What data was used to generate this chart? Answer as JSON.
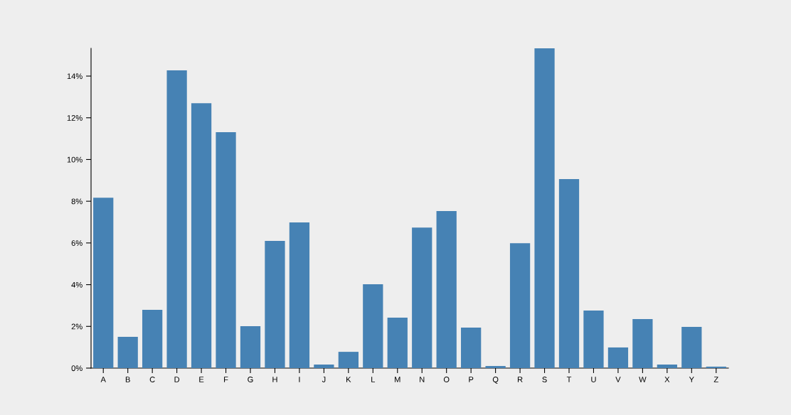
{
  "chart_data": {
    "type": "bar",
    "categories": [
      "A",
      "B",
      "C",
      "D",
      "E",
      "F",
      "G",
      "H",
      "I",
      "J",
      "K",
      "L",
      "M",
      "N",
      "O",
      "P",
      "Q",
      "R",
      "S",
      "T",
      "U",
      "V",
      "W",
      "X",
      "Y",
      "Z"
    ],
    "values": [
      8.17,
      1.5,
      2.79,
      14.27,
      12.7,
      11.31,
      2.01,
      6.1,
      6.98,
      0.17,
      0.78,
      4.02,
      2.42,
      6.74,
      7.53,
      1.94,
      0.1,
      5.99,
      15.33,
      9.06,
      2.76,
      0.99,
      2.35,
      0.17,
      1.98,
      0.07
    ],
    "color": "#4682b4",
    "ylim": [
      0,
      15.33
    ],
    "yticks": [
      {
        "value": 0,
        "label": "0%"
      },
      {
        "value": 2,
        "label": "2%"
      },
      {
        "value": 4,
        "label": "4%"
      },
      {
        "value": 6,
        "label": "6%"
      },
      {
        "value": 8,
        "label": "8%"
      },
      {
        "value": 10,
        "label": "10%"
      },
      {
        "value": 12,
        "label": "12%"
      },
      {
        "value": 14,
        "label": "14%"
      }
    ],
    "grid": false
  }
}
